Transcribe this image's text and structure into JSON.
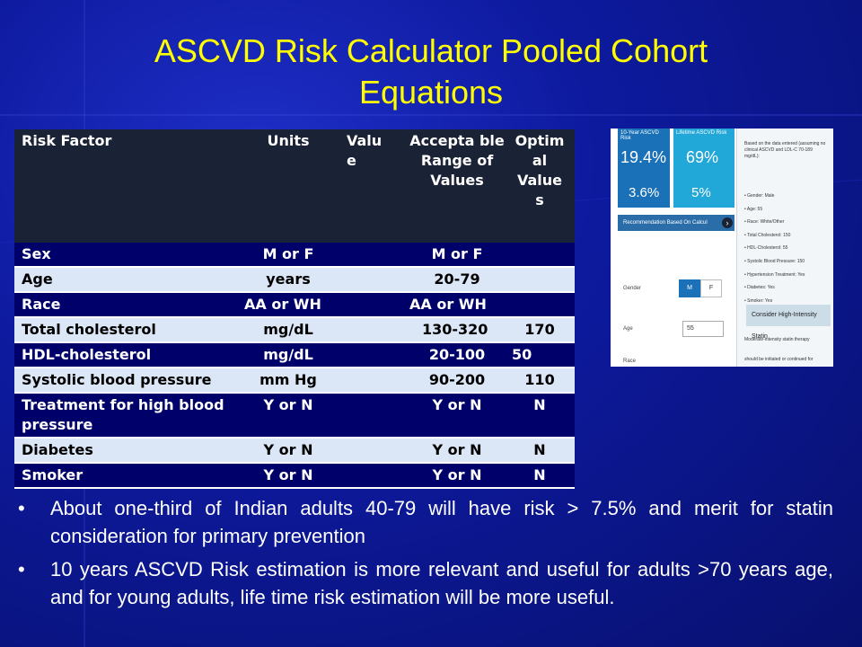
{
  "slide": {
    "title_line1": "ASCVD Risk Calculator Pooled Cohort",
    "title_line2": "Equations"
  },
  "table": {
    "headers": {
      "factor": "Risk Factor",
      "units": "Units",
      "value": "Valu e",
      "range": "Accepta ble Range of Values",
      "optimal": "Optim al Value s"
    },
    "rows": [
      {
        "factor": "Sex",
        "units": "M or F",
        "value": "",
        "range": "M or F",
        "optimal": ""
      },
      {
        "factor": "Age",
        "units": "years",
        "value": "",
        "range": "20-79",
        "optimal": ""
      },
      {
        "factor": "Race",
        "units": "AA or WH",
        "value": "",
        "range": "AA or WH",
        "optimal": ""
      },
      {
        "factor": "Total cholesterol",
        "units": "mg/dL",
        "value": "",
        "range": "130-320",
        "optimal": "170"
      },
      {
        "factor": "HDL-cholesterol",
        "units": "mg/dL",
        "value": "",
        "range": "20-100",
        "optimal": "50"
      },
      {
        "factor": "Systolic blood pressure",
        "units": "mm Hg",
        "value": "",
        "range": "90-200",
        "optimal": "110"
      },
      {
        "factor": "Treatment for high blood pressure",
        "units": "Y or N",
        "value": "",
        "range": "Y or N",
        "optimal": "N"
      },
      {
        "factor": "Diabetes",
        "units": "Y or N",
        "value": "",
        "range": "Y or N",
        "optimal": "N"
      },
      {
        "factor": "Smoker",
        "units": "Y or N",
        "value": "",
        "range": "Y or N",
        "optimal": "N"
      }
    ]
  },
  "calculator": {
    "ten_year_label": "10-Year ASCVD Risk",
    "lifetime_label": "Lifetime ASCVD Risk",
    "ten_year_risk": "19.4",
    "lifetime_risk": "69",
    "ten_year_optimal": "3.6",
    "lifetime_optimal": "5",
    "recommendation": "Recommendation Based On Calcul",
    "intro": "Based on the data entered (assuming no clinical ASCVD and LDL-C 70-189 mg/dL):",
    "inputs": [
      "Gender: Male",
      "Age: 55",
      "Race: White/Other",
      "Total Cholesterol: 150",
      "HDL-Cholesterol: 55",
      "Systolic Blood Pressure: 150",
      "Hypertension Treatment: Yes",
      "Diabetes: Yes",
      "Smoker: Yes"
    ],
    "gender_label": "Gender",
    "gender_m": "M",
    "gender_f": "F",
    "age_label": "Age",
    "age_value": "55",
    "race_label": "Race",
    "statin_heading": "Consider High-Intensity Statin",
    "statin_text1": "Moderate-intensity statin therapy",
    "statin_text2": "should be initiated or continued for"
  },
  "bullets": [
    "About one-third of Indian adults 40-79 will have risk > 7.5% and merit for statin consideration for primary prevention",
    "10 years ASCVD Risk estimation is more relevant and useful for adults >70 years age, and for young adults, life time risk estimation will be more useful."
  ]
}
